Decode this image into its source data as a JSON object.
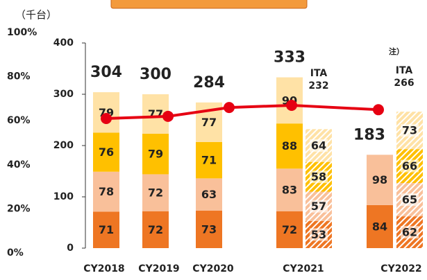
{
  "chart_data": {
    "type": "bar",
    "unit_label": "（千台）",
    "note": "注）",
    "categories": [
      "CY2018",
      "CY2019",
      "CY2020",
      "CY2021",
      "CY2022"
    ],
    "ylim": [
      0,
      400
    ],
    "yticks": [
      0,
      100,
      200,
      300,
      400
    ],
    "y2lim": [
      0,
      100
    ],
    "y2ticks": [
      {
        "value": 0,
        "label": "0%"
      },
      {
        "value": 20,
        "label": "20%"
      },
      {
        "value": 40,
        "label": "40%"
      },
      {
        "value": 60,
        "label": "60%"
      },
      {
        "value": 80,
        "label": "80%"
      },
      {
        "value": 100,
        "label": "100%"
      }
    ],
    "series": [
      {
        "color": "#ee7623",
        "values": [
          71,
          72,
          73,
          72,
          84
        ]
      },
      {
        "color": "#f9c09a",
        "values": [
          78,
          72,
          63,
          83,
          98
        ]
      },
      {
        "color": "#ffc000",
        "values": [
          76,
          79,
          71,
          88,
          null
        ]
      },
      {
        "color": "#ffe2a6",
        "values": [
          79,
          77,
          77,
          90,
          null
        ]
      }
    ],
    "totals": [
      304,
      300,
      284,
      333,
      183
    ],
    "ita": {
      "label": "ITA",
      "series": [
        {
          "color": "#ee7623",
          "values": [
            null,
            null,
            null,
            53,
            62
          ]
        },
        {
          "color": "#f9c09a",
          "values": [
            null,
            null,
            null,
            57,
            65
          ]
        },
        {
          "color": "#ffc000",
          "values": [
            null,
            null,
            null,
            58,
            66
          ]
        },
        {
          "color": "#ffe2a6",
          "values": [
            null,
            null,
            null,
            64,
            73
          ]
        }
      ],
      "totals": [
        null,
        null,
        null,
        232,
        266
      ]
    },
    "line": {
      "type": "line",
      "axis": "y2",
      "color": "#e60012",
      "values": [
        61,
        62,
        66,
        67,
        65
      ]
    }
  }
}
